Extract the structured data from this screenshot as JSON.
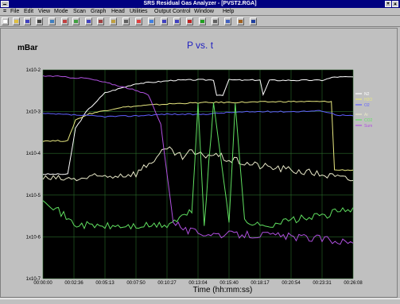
{
  "window": {
    "title": "SRS Residual Gas Analyzer - [PVST2.RGA]"
  },
  "menu": [
    "File",
    "Edit",
    "View",
    "Mode",
    "Scan",
    "Graph",
    "Head",
    "Utilities",
    "Output Control",
    "Window",
    "Help"
  ],
  "toolbar": {
    "icons": [
      "new-file-icon",
      "open-folder-icon",
      "save-disk-icon",
      "print-icon",
      "analog-scan-icon",
      "histogram-scan-icon",
      "table-scan-icon",
      "pvst-scan-icon",
      "leak-test-icon",
      "annunciator-icon",
      "scan-setup-icon",
      "filament-icon",
      "detector-icon",
      "zoom-in-icon",
      "zoom-out-icon",
      "stop-icon",
      "run-icon",
      "cursor-icon",
      "graph-options-icon",
      "library-icon",
      "info-icon"
    ]
  },
  "header": {
    "y_unit": "mBar",
    "chart_title": "P vs. t"
  },
  "chart_data": {
    "type": "line",
    "title": "P vs. t",
    "ylabel": "mBar",
    "xlabel": "Time (hh:mm:ss)",
    "log_y": true,
    "ylim": [
      1e-07,
      0.01
    ],
    "y_ticks": [
      "1x10-7",
      "1x10-6",
      "1x10-5",
      "1x10-4",
      "1x10-3",
      "1x10-2"
    ],
    "y_tick_values": [
      1e-07,
      1e-06,
      1e-05,
      0.0001,
      0.001,
      0.01
    ],
    "x_ticks": [
      "00:00:00",
      "00:02:36",
      "00:05:13",
      "00:07:50",
      "00:10:27",
      "00:13:04",
      "00:15:40",
      "00:18:17",
      "00:20:54",
      "00:23:31",
      "00:26:08"
    ],
    "grid": true,
    "background": "#000000",
    "legend_position": "right",
    "series": [
      {
        "name": "N2",
        "color": "#ffffff",
        "style": "line",
        "x": [
          0,
          0.08,
          0.105,
          0.14,
          0.2,
          0.3,
          0.38,
          0.42,
          0.5,
          0.55,
          0.56,
          0.58,
          0.6,
          0.61,
          0.65,
          0.7,
          0.71,
          0.73,
          0.8,
          0.9,
          0.94,
          0.95,
          1.0
        ],
        "y": [
          -4.5,
          -4.5,
          -3.4,
          -3.0,
          -2.55,
          -2.33,
          -2.28,
          -2.25,
          -2.24,
          -2.24,
          -2.6,
          -2.6,
          -2.24,
          -2.24,
          -2.25,
          -2.24,
          -2.6,
          -2.25,
          -2.25,
          -2.25,
          -2.17,
          -2.17,
          -2.17
        ]
      },
      {
        "name": "H2O",
        "color": "#e8e880",
        "style": "line",
        "x": [
          0,
          0.08,
          0.105,
          0.15,
          0.25,
          0.35,
          0.45,
          0.55,
          0.6,
          0.7,
          0.8,
          0.9,
          0.93,
          0.94,
          1.0
        ],
        "y": [
          -3.7,
          -3.7,
          -3.2,
          -3.05,
          -2.9,
          -2.84,
          -2.8,
          -2.78,
          -2.78,
          -2.77,
          -2.76,
          -2.76,
          -2.76,
          -4.4,
          -4.4
        ]
      },
      {
        "name": "O2",
        "color": "#6060ff",
        "style": "line",
        "x": [
          0,
          0.1,
          0.2,
          0.3,
          0.4,
          0.5,
          0.6,
          0.7,
          0.8,
          0.9,
          0.95,
          1.0
        ],
        "y": [
          -3.05,
          -3.08,
          -3.12,
          -3.1,
          -3.06,
          -3.07,
          -3.02,
          -3.0,
          -3.0,
          -2.98,
          -3.08,
          -3.1
        ]
      },
      {
        "name": "Ar",
        "color": "#e8e8c8",
        "style": "line",
        "x": [
          0,
          0.1,
          0.2,
          0.3,
          0.4,
          0.45,
          0.48,
          0.5,
          0.55,
          0.6,
          0.7,
          0.8,
          0.9,
          1.0
        ],
        "y": [
          -4.6,
          -4.62,
          -4.55,
          -4.48,
          -3.9,
          -4.1,
          -3.96,
          -4.05,
          -4.02,
          -4.15,
          -4.3,
          -4.4,
          -4.5,
          -4.65
        ]
      },
      {
        "name": "CO2",
        "color": "#60e060",
        "style": "line",
        "x": [
          0,
          0.1,
          0.2,
          0.3,
          0.4,
          0.48,
          0.5,
          0.52,
          0.55,
          0.6,
          0.62,
          0.65,
          0.7,
          0.8,
          0.9,
          1.0
        ],
        "y": [
          -5.05,
          -5.7,
          -5.75,
          -5.75,
          -5.72,
          -5.4,
          -2.8,
          -5.7,
          -2.8,
          -5.6,
          -2.8,
          -5.6,
          -5.75,
          -5.6,
          -5.5,
          -5.3
        ]
      },
      {
        "name": "Sum",
        "color": "#b050e0",
        "style": "line",
        "x": [
          0,
          0.04,
          0.08,
          0.14,
          0.2,
          0.28,
          0.34,
          0.38,
          0.4,
          0.42,
          0.46,
          0.5,
          0.6,
          0.7,
          0.8,
          0.9,
          1.0
        ],
        "y": [
          -2.15,
          -2.15,
          -2.18,
          -2.2,
          -2.3,
          -2.45,
          -2.6,
          -3.3,
          -4.5,
          -5.6,
          -5.85,
          -5.9,
          -5.95,
          -5.95,
          -6.0,
          -6.05,
          -6.15
        ]
      }
    ],
    "legend": [
      {
        "label": "N2",
        "color": "#ffffff"
      },
      {
        "label": "H2O",
        "color": "#e8e880"
      },
      {
        "label": "O2",
        "color": "#6060ff"
      },
      {
        "label": "Ar",
        "color": "#e8e8c8"
      },
      {
        "label": "CO2",
        "color": "#60e060"
      },
      {
        "label": "Sum",
        "color": "#b050e0"
      }
    ]
  }
}
